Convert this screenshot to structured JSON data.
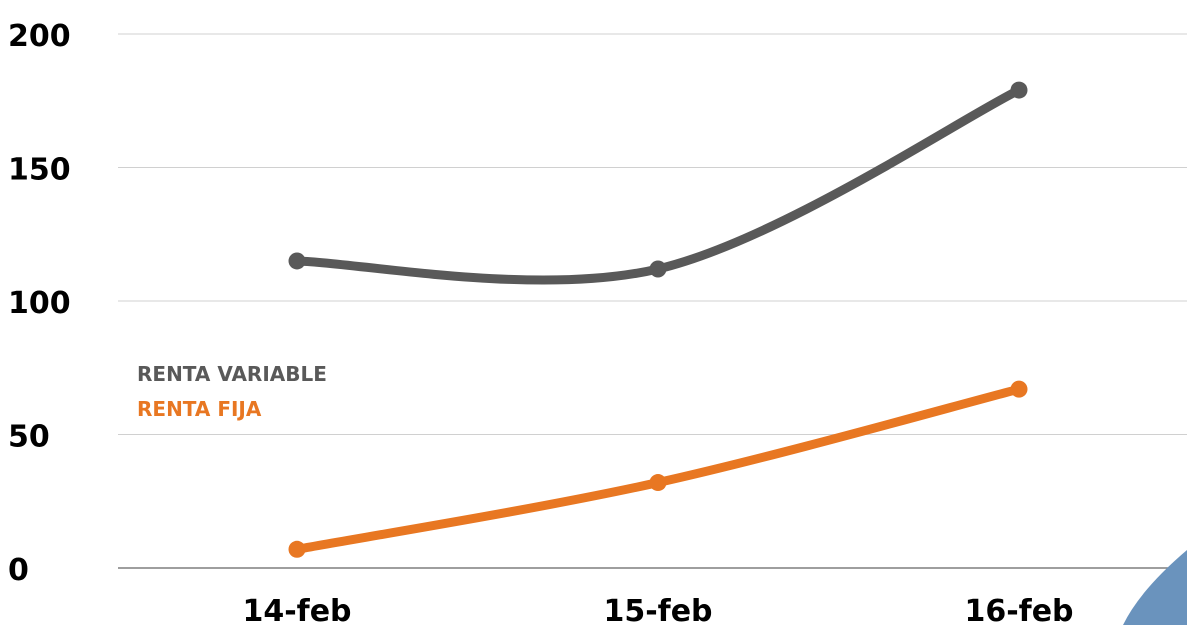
{
  "chart_data": {
    "type": "line",
    "categories": [
      "14-feb",
      "15-feb",
      "16-feb"
    ],
    "series": [
      {
        "name": "RENTA VARIABLE",
        "values": [
          115,
          112,
          179
        ],
        "color": "#595959"
      },
      {
        "name": "RENTA FIJA",
        "values": [
          7,
          32,
          67
        ],
        "color": "#e87722"
      }
    ],
    "y_ticks": [
      "0",
      "50",
      "100",
      "150",
      "200"
    ],
    "ylim": [
      0,
      200
    ],
    "grid": true,
    "legend_position": "left",
    "smooth": true
  },
  "decoration": {
    "corner_shape_color": "#6a93bd"
  }
}
